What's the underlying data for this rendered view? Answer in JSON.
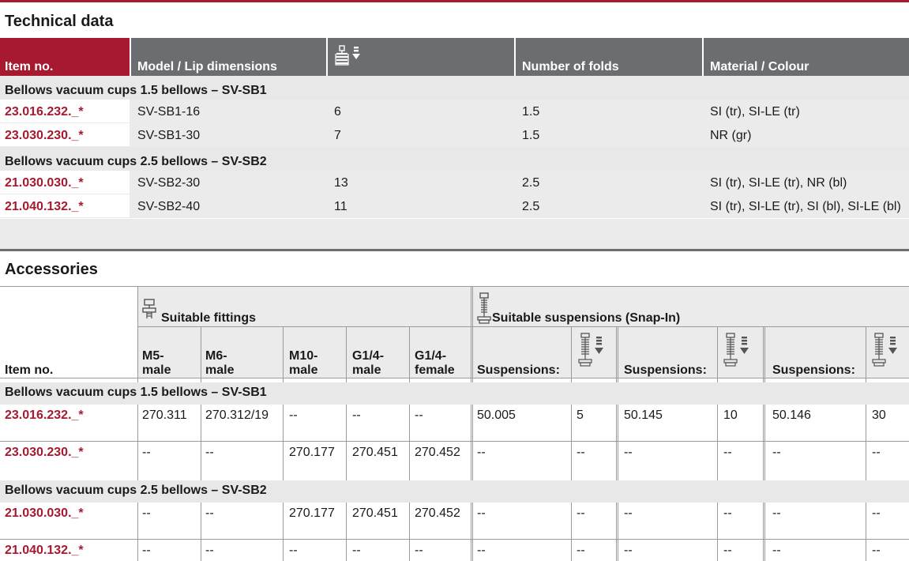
{
  "colors": {
    "accent": "#a6192e",
    "header_gray": "#6b6d70",
    "row_gray": "#ebebeb"
  },
  "technical": {
    "title": "Technical data",
    "headers": {
      "item_no": "Item no.",
      "model": "Model / Lip dimensions",
      "stroke_icon": "stroke-icon",
      "folds": "Number of folds",
      "material": "Material / Colour"
    },
    "groups": [
      {
        "label": "Bellows vacuum cups 1.5 bellows – SV-SB1",
        "rows": [
          {
            "item": "23.016.232._*",
            "model": "SV-SB1-16",
            "stroke": "6",
            "folds": "1.5",
            "material": "SI (tr), SI-LE (tr)"
          },
          {
            "item": "23.030.230._*",
            "model": "SV-SB1-30",
            "stroke": "7",
            "folds": "1.5",
            "material": "NR (gr)"
          }
        ]
      },
      {
        "label": "Bellows vacuum cups 2.5 bellows – SV-SB2",
        "rows": [
          {
            "item": "21.030.030._*",
            "model": "SV-SB2-30",
            "stroke": "13",
            "folds": "2.5",
            "material": "SI (tr), SI-LE (tr), NR (bl)"
          },
          {
            "item": "21.040.132._*",
            "model": "SV-SB2-40",
            "stroke": "11",
            "folds": "2.5",
            "material": "SI (tr), SI-LE (tr), SI (bl), SI-LE (bl)"
          }
        ]
      }
    ]
  },
  "accessories": {
    "title": "Accessories",
    "headers": {
      "item_no": "Item no.",
      "fittings_icon": "fitting-icon",
      "fittings": "Suitable fittings",
      "suspensions_icon": "suspension-icon",
      "suspensions": "Suitable suspensions (Snap-In)",
      "m5": [
        "M5-",
        "male"
      ],
      "m6": [
        "M6-",
        "male"
      ],
      "m10": [
        "M10-",
        "male"
      ],
      "g14m": [
        "G1/4-",
        "male"
      ],
      "g14f": [
        "G1/4-",
        "female"
      ],
      "susp": "Suspensions:",
      "stroke_icon": "suspension-stroke-icon"
    },
    "groups": [
      {
        "label": "Bellows vacuum cups 1.5 bellows – SV-SB1",
        "rows": [
          {
            "item": "23.016.232._*",
            "cells": [
              "270.311",
              "270.312/19",
              "--",
              "--",
              "--",
              "50.005",
              "5",
              "50.145",
              "10",
              "50.146",
              "30"
            ]
          },
          {
            "item": "23.030.230._*",
            "cells": [
              "--",
              "--",
              "270.177",
              "270.451",
              "270.452",
              "--",
              "--",
              "--",
              "--",
              "--",
              "--"
            ]
          }
        ]
      },
      {
        "label": "Bellows vacuum cups 2.5 bellows – SV-SB2",
        "rows": [
          {
            "item": "21.030.030._*",
            "cells": [
              "--",
              "--",
              "270.177",
              "270.451",
              "270.452",
              "--",
              "--",
              "--",
              "--",
              "--",
              "--"
            ]
          },
          {
            "item": "21.040.132._*",
            "cells": [
              "--",
              "--",
              "--",
              "--",
              "--",
              "--",
              "--",
              "--",
              "--",
              "--",
              "--"
            ]
          }
        ]
      }
    ]
  }
}
